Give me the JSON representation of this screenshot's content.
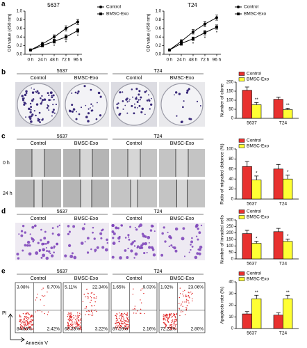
{
  "panel_labels": [
    "a",
    "b",
    "c",
    "d",
    "e"
  ],
  "chart_data": [
    {
      "type": "line",
      "title": "5637",
      "ylabel": "OD value (450 nm)",
      "categories": [
        "0 h",
        "24 h",
        "48 h",
        "72 h",
        "96 h"
      ],
      "series": [
        {
          "name": "Control",
          "color": "#000000",
          "marker": "circle",
          "values": [
            0.1,
            0.24,
            0.4,
            0.6,
            0.75
          ],
          "errors": [
            0.02,
            0.04,
            0.05,
            0.06,
            0.06
          ]
        },
        {
          "name": "BMSC-Exo",
          "color": "#000000",
          "marker": "square",
          "values": [
            0.1,
            0.2,
            0.3,
            0.4,
            0.55
          ],
          "errors": [
            0.02,
            0.03,
            0.04,
            0.05,
            0.05
          ]
        }
      ],
      "significance": [
        null,
        null,
        "*",
        "*",
        "*"
      ],
      "ylim": [
        0,
        1
      ],
      "yticks": [
        {
          "value": 0,
          "label": "0.0"
        },
        0.2,
        0.4,
        0.6,
        0.8,
        {
          "value": 1,
          "label": "1.0"
        }
      ]
    },
    {
      "type": "line",
      "title": "T24",
      "ylabel": "OD value (450 nm)",
      "categories": [
        "0 h",
        "24 h",
        "48 h",
        "72 h",
        "96 h"
      ],
      "series": [
        {
          "name": "Control",
          "color": "#000000",
          "marker": "circle",
          "values": [
            0.1,
            0.3,
            0.52,
            0.7,
            0.85
          ],
          "errors": [
            0.02,
            0.04,
            0.05,
            0.06,
            0.06
          ]
        },
        {
          "name": "BMSC-Exo",
          "color": "#000000",
          "marker": "square",
          "values": [
            0.1,
            0.25,
            0.36,
            0.5,
            0.63
          ],
          "errors": [
            0.02,
            0.04,
            0.04,
            0.05,
            0.05
          ]
        }
      ],
      "significance": [
        null,
        null,
        "*",
        "*",
        "*"
      ],
      "ylim": [
        0,
        1
      ],
      "yticks": [
        {
          "value": 0,
          "label": "0.0"
        },
        0.2,
        0.4,
        0.6,
        0.8,
        {
          "value": 1,
          "label": "1.0"
        }
      ]
    },
    {
      "type": "bar",
      "ylabel": "Number of clone",
      "categories": [
        "5637",
        "T24"
      ],
      "series": [
        {
          "name": "Control",
          "color": "#e8312f",
          "values": [
            155,
            105
          ],
          "errors": [
            18,
            12
          ]
        },
        {
          "name": "BMSC-Exo",
          "color": "#ffff33",
          "values": [
            75,
            48
          ],
          "errors": [
            12,
            8
          ]
        }
      ],
      "significance": [
        "**",
        "**"
      ],
      "ylim": [
        0,
        200
      ],
      "yticks": [
        0,
        50,
        100,
        150,
        200
      ]
    },
    {
      "type": "bar",
      "ylabel": "Ratio of migrated distance (%)",
      "categories": [
        "5637",
        "T24"
      ],
      "series": [
        {
          "name": "Control",
          "color": "#e8312f",
          "values": [
            65,
            60
          ],
          "errors": [
            10,
            9
          ]
        },
        {
          "name": "BMSC-Exo",
          "color": "#ffff33",
          "values": [
            38,
            40
          ],
          "errors": [
            8,
            8
          ]
        }
      ],
      "significance": [
        "*",
        "*"
      ],
      "ylim": [
        0,
        100
      ],
      "yticks": [
        0,
        20,
        40,
        60,
        80,
        100
      ]
    },
    {
      "type": "bar",
      "ylabel": "Number of invaded cells",
      "categories": [
        "5637",
        "T24"
      ],
      "series": [
        {
          "name": "Control",
          "color": "#e8312f",
          "values": [
            195,
            210
          ],
          "errors": [
            25,
            25
          ]
        },
        {
          "name": "BMSC-Exo",
          "color": "#ffff33",
          "values": [
            120,
            135
          ],
          "errors": [
            15,
            18
          ]
        }
      ],
      "significance": [
        "*",
        "*"
      ],
      "ylim": [
        0,
        300
      ],
      "yticks": [
        0,
        50,
        100,
        150,
        200,
        250,
        300
      ]
    },
    {
      "type": "bar",
      "ylabel": "Apoptosis rate (%)",
      "categories": [
        "5637",
        "T24"
      ],
      "series": [
        {
          "name": "Control",
          "color": "#e8312f",
          "values": [
            12.5,
            11.5
          ],
          "errors": [
            2,
            2
          ]
        },
        {
          "name": "BMSC-Exo",
          "color": "#ffff33",
          "values": [
            25.5,
            25.5
          ],
          "errors": [
            3,
            3
          ]
        }
      ],
      "significance": [
        "**",
        "**"
      ],
      "ylim": [
        0,
        40
      ],
      "yticks": [
        0,
        10,
        20,
        30,
        40
      ]
    }
  ],
  "panels": {
    "b": {
      "groups": [
        "5637",
        "T24"
      ],
      "conditions": [
        "Control",
        "BMSC-Exo",
        "Control",
        "BMSC-Exo"
      ]
    },
    "c": {
      "groups": [
        "5637",
        "T24"
      ],
      "conditions": [
        "Control",
        "BMSC-Exo",
        "Control",
        "BMSC-Exo"
      ],
      "rows": [
        "0 h",
        "24 h"
      ]
    },
    "d": {
      "groups": [
        "5637",
        "T24"
      ],
      "conditions": [
        "Control",
        "BMSC-Exo",
        "Control",
        "BMSC-Exo"
      ]
    },
    "e": {
      "groups": [
        "5637",
        "T24"
      ],
      "conditions": [
        "Control",
        "BMSC-Exo",
        "Control",
        "BMSC-Exo"
      ],
      "ylabel": "PI",
      "xlabel": "Annexin V",
      "quadrants": [
        [
          "3.08%",
          "9.70%",
          "84.80%",
          "2.42%"
        ],
        [
          "5.11%",
          "22.34%",
          "69.33%",
          "3.22%"
        ],
        [
          "1.65%",
          "9.03%",
          "87.16%",
          "2.16%"
        ],
        [
          "1.92%",
          "23.06%",
          "72.22%",
          "2.80%"
        ]
      ]
    }
  }
}
